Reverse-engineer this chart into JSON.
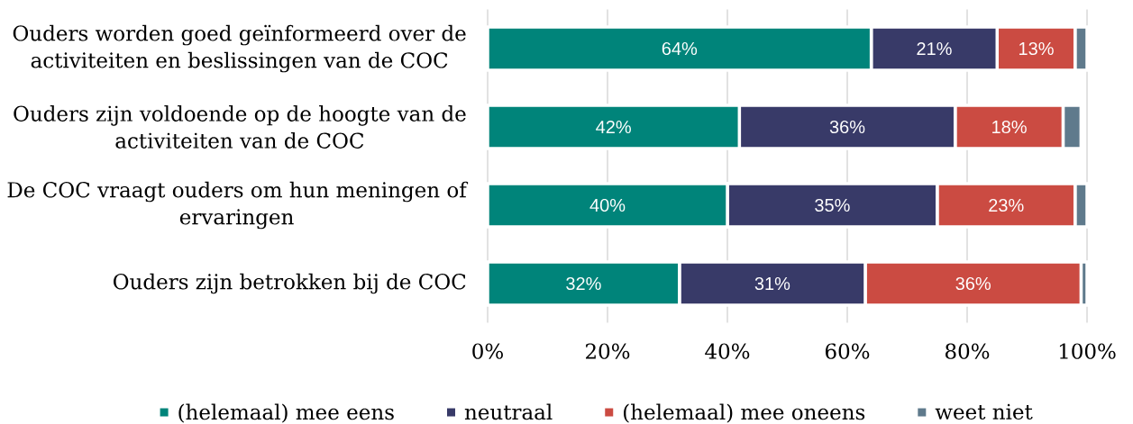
{
  "chart_data": {
    "type": "bar",
    "orientation": "horizontal",
    "stacked": true,
    "categories": [
      "Ouders worden goed geïnformeerd over de activiteiten en beslissingen van de COC",
      "Ouders zijn voldoende op de hoogte van de activiteiten van de COC",
      "De COC vraagt ouders om hun meningen of ervaringen",
      "Ouders zijn betrokken bij de COC"
    ],
    "series": [
      {
        "name": "(helemaal) mee eens",
        "color": "#00847a",
        "values": [
          64,
          42,
          40,
          32
        ],
        "value_labels": [
          "64%",
          "42%",
          "40%",
          "32%"
        ]
      },
      {
        "name": "neutraal",
        "color": "#383a68",
        "values": [
          21,
          36,
          35,
          31
        ],
        "value_labels": [
          "21%",
          "36%",
          "35%",
          "31%"
        ]
      },
      {
        "name": "(helemaal) mee oneens",
        "color": "#cb4b42",
        "values": [
          13,
          18,
          23,
          36
        ],
        "value_labels": [
          "13%",
          "18%",
          "23%",
          "36%"
        ]
      },
      {
        "name": "weet niet",
        "color": "#5f7a8c",
        "values": [
          2,
          3,
          2,
          1
        ]
      }
    ],
    "xlim": [
      0,
      100
    ],
    "xticks": [
      {
        "value": 0,
        "label": "0%"
      },
      {
        "value": 20,
        "label": "20%"
      },
      {
        "value": 40,
        "label": "40%"
      },
      {
        "value": 60,
        "label": "60%"
      },
      {
        "value": 80,
        "label": "80%"
      },
      {
        "value": 100,
        "label": "100%"
      }
    ],
    "grid": "x",
    "legend": "bottom"
  }
}
